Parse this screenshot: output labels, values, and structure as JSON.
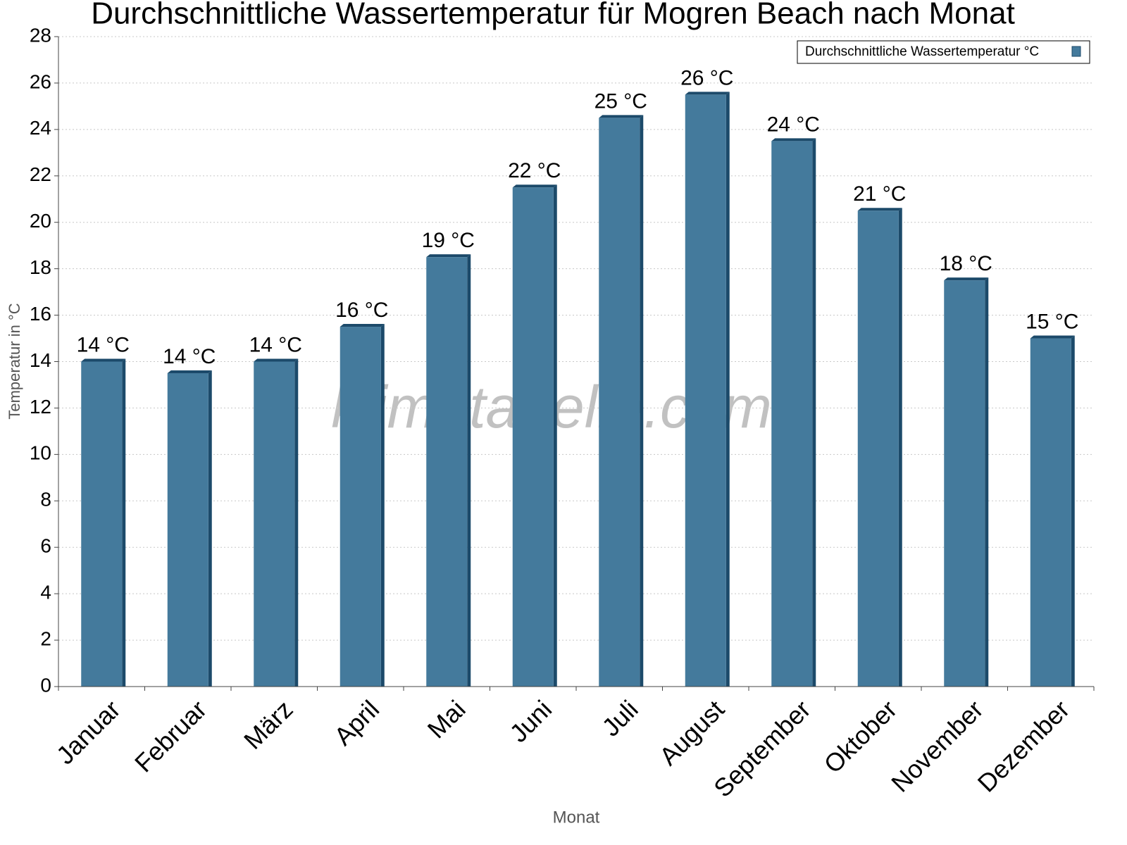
{
  "chart_data": {
    "type": "bar",
    "title": "Durchschnittliche Wassertemperatur für Mogren Beach nach Monat",
    "x_label": "Monat",
    "y_label": "Temperatur in °C",
    "watermark": "klimatabelle.com",
    "categories": [
      "Januar",
      "Februar",
      "März",
      "April",
      "Mai",
      "Juni",
      "Juli",
      "August",
      "September",
      "Oktober",
      "November",
      "Dezember"
    ],
    "series": [
      {
        "name": "Durchschnittliche Wassertemperatur °C",
        "color": "#447a9c",
        "values": [
          14,
          13.5,
          14,
          15.5,
          18.5,
          21.5,
          24.5,
          25.5,
          23.5,
          20.5,
          17.5,
          15
        ],
        "value_labels": [
          "14 °C",
          "14 °C",
          "14 °C",
          "16 °C",
          "19 °C",
          "22 °C",
          "25 °C",
          "26 °C",
          "24 °C",
          "21 °C",
          "18 °C",
          "15 °C"
        ]
      }
    ],
    "ylim": [
      0,
      28
    ],
    "yticks": [
      0,
      2,
      4,
      6,
      8,
      10,
      12,
      14,
      16,
      18,
      20,
      22,
      24,
      26,
      28
    ],
    "grid": true,
    "legend": "top-right"
  }
}
